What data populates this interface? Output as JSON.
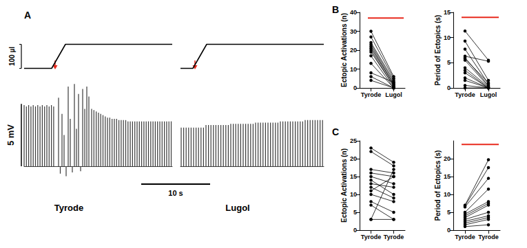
{
  "chart_data": [
    {
      "type": "trace",
      "panel_label": "A",
      "label": "Tyrode",
      "tick_labels": false,
      "grid": false,
      "xlim": [
        0,
        21.5
      ],
      "ylim": [
        -1,
        7
      ],
      "color": "#3a3a3a",
      "volume": {
        "x": [
          0,
          4.0,
          6.0,
          21.5
        ],
        "values": [
          0,
          0,
          100,
          100
        ],
        "ylim": [
          -10,
          110
        ],
        "color": "#000000"
      },
      "injection": {
        "x": 4.5,
        "color": "#e8291c"
      },
      "spikes": {
        "x": [
          0,
          0.33,
          0.66,
          0.99,
          1.32,
          1.65,
          1.98,
          2.31,
          2.64,
          2.97,
          3.3,
          3.63,
          3.96,
          4.29,
          5.0,
          5.25,
          5.5,
          5.8,
          6.1,
          6.4,
          6.7,
          7.0,
          7.3,
          7.6,
          7.9,
          8.2,
          8.5,
          8.8,
          9.1,
          9.4,
          9.8,
          10.13,
          10.46,
          10.79,
          11.12,
          11.45,
          11.78,
          12.11,
          12.44,
          12.77,
          13.1,
          13.43,
          13.76,
          14.09,
          14.42,
          14.75,
          15.08,
          15.41,
          15.74,
          16.07,
          16.4,
          16.73,
          17.06,
          17.39,
          17.72,
          18.05,
          18.38,
          18.71,
          19.04,
          19.37,
          19.7,
          20.03,
          20.36,
          20.69,
          21.02,
          21.35
        ],
        "values": [
          4.9,
          4.8,
          4.9,
          4.8,
          4.9,
          4.8,
          4.9,
          4.8,
          4.9,
          4.8,
          4.9,
          4.8,
          4.9,
          4.8,
          5.5,
          -0.6,
          4.2,
          2.5,
          -0.8,
          6.4,
          3.8,
          -0.5,
          6.6,
          3.0,
          5.8,
          -0.4,
          6.2,
          4.6,
          6.4,
          5.6,
          4.6,
          4.5,
          4.4,
          4.3,
          4.2,
          4.1,
          4.0,
          3.9,
          3.9,
          3.8,
          3.8,
          3.8,
          3.7,
          3.7,
          3.7,
          3.7,
          3.6,
          3.6,
          3.6,
          3.6,
          3.6,
          3.6,
          3.6,
          3.6,
          3.6,
          3.6,
          3.6,
          3.6,
          3.6,
          3.6,
          3.6,
          3.6,
          3.6,
          3.6,
          3.6,
          3.6
        ]
      },
      "scale_bars": [
        {
          "label": "100 µl",
          "value": 100
        },
        {
          "label": "5 mV",
          "value": 5
        },
        {
          "label": "10 s",
          "value": 10
        }
      ]
    },
    {
      "type": "trace",
      "label": "Lugol",
      "tick_labels": false,
      "grid": false,
      "xlim": [
        0,
        20.8
      ],
      "ylim": [
        -1,
        7
      ],
      "color": "#3a3a3a",
      "volume": {
        "x": [
          0,
          1.8,
          3.8,
          20.8
        ],
        "values": [
          0,
          0,
          100,
          100
        ],
        "ylim": [
          -10,
          110
        ],
        "color": "#000000"
      },
      "injection": {
        "x": 2.1,
        "color": "#e8291c"
      },
      "spikes": {
        "x": [
          0.1,
          0.46,
          0.82,
          1.18,
          1.54,
          1.9,
          2.26,
          2.62,
          2.98,
          3.34,
          3.7,
          4.06,
          4.42,
          4.78,
          5.14,
          5.5,
          5.86,
          6.22,
          6.58,
          6.94,
          7.3,
          7.66,
          8.02,
          8.38,
          8.74,
          9.1,
          9.46,
          9.82,
          10.18,
          10.54,
          10.9,
          11.26,
          11.62,
          11.98,
          12.34,
          12.7,
          13.06,
          13.42,
          13.78,
          14.14,
          14.5,
          14.86,
          15.22,
          15.58,
          15.94,
          16.3,
          16.66,
          17.02,
          17.38,
          17.74,
          18.1,
          18.46,
          18.82,
          19.18,
          19.54,
          19.9,
          20.26,
          20.62
        ],
        "values": [
          3.1,
          3.1,
          3.1,
          3.1,
          3.1,
          3.1,
          3.1,
          3.1,
          3.1,
          3.1,
          3.3,
          3.3,
          3.3,
          3.3,
          3.3,
          3.3,
          3.3,
          3.3,
          3.3,
          3.3,
          3.4,
          3.4,
          3.4,
          3.4,
          3.4,
          3.4,
          3.4,
          3.4,
          3.4,
          3.4,
          3.5,
          3.5,
          3.5,
          3.5,
          3.5,
          3.5,
          3.5,
          3.5,
          3.5,
          3.5,
          3.6,
          3.6,
          3.6,
          3.6,
          3.6,
          3.6,
          3.6,
          3.6,
          3.6,
          3.6,
          3.7,
          3.7,
          3.7,
          3.7,
          3.7,
          3.7,
          3.7,
          3.7
        ]
      }
    },
    {
      "type": "paired",
      "panel_label": "B",
      "categories": [
        "Tyrode",
        "Lugol"
      ],
      "y_label": "Ectopic Activations (n)",
      "ylim": [
        0,
        40
      ],
      "yticks": [
        0,
        10,
        20,
        30,
        40
      ],
      "grid": false,
      "color": "#000000",
      "pairs": [
        [
          30,
          6
        ],
        [
          27,
          5
        ],
        [
          24,
          4
        ],
        [
          23,
          3
        ],
        [
          22,
          2
        ],
        [
          21,
          2
        ],
        [
          20,
          1
        ],
        [
          19,
          1
        ],
        [
          17,
          0
        ],
        [
          13,
          0
        ],
        [
          8,
          3
        ],
        [
          6,
          0
        ],
        [
          4,
          0
        ]
      ],
      "significance": {
        "value": 37,
        "color": "#e8291c"
      }
    },
    {
      "type": "paired",
      "categories": [
        "Tyrode",
        "Lugol"
      ],
      "y_label": "Period of Ectopics (s)",
      "ylim": [
        0,
        15
      ],
      "yticks": [
        0,
        5,
        10,
        15
      ],
      "grid": false,
      "color": "#000000",
      "pairs": [
        [
          11.3,
          5.5
        ],
        [
          9.3,
          1.5
        ],
        [
          7.7,
          0.8
        ],
        [
          6.3,
          5.3
        ],
        [
          6.0,
          0.5
        ],
        [
          5.8,
          1.0
        ],
        [
          5.5,
          0.3
        ],
        [
          4.0,
          0.2
        ],
        [
          3.5,
          0
        ],
        [
          3.0,
          0
        ],
        [
          2.0,
          0
        ],
        [
          1.5,
          0
        ],
        [
          0.5,
          0
        ],
        [
          0,
          0
        ]
      ],
      "significance": {
        "value": 14,
        "color": "#e8291c"
      }
    },
    {
      "type": "paired",
      "panel_label": "C",
      "categories": [
        "Tyrode",
        "Tyrode"
      ],
      "y_label": "Ectopic Activations (n)",
      "ylim": [
        0,
        25
      ],
      "yticks": [
        0,
        5,
        10,
        15,
        20,
        25
      ],
      "grid": false,
      "color": "#000000",
      "pairs": [
        [
          23,
          19
        ],
        [
          22,
          18
        ],
        [
          17,
          16
        ],
        [
          16,
          15
        ],
        [
          15,
          13
        ],
        [
          14,
          10
        ],
        [
          13,
          12
        ],
        [
          12,
          9
        ],
        [
          11,
          15
        ],
        [
          10,
          8
        ],
        [
          8,
          5
        ],
        [
          7,
          3
        ],
        [
          3,
          17
        ],
        [
          3,
          3
        ]
      ]
    },
    {
      "type": "paired",
      "categories": [
        "Tyrode",
        "Tyrode"
      ],
      "y_label": "Period of Ectopics (s)",
      "ylim": [
        0,
        25
      ],
      "yticks": [
        0,
        5,
        10,
        15,
        20
      ],
      "grid": false,
      "color": "#000000",
      "pairs": [
        [
          7,
          19.7
        ],
        [
          6.8,
          17.5
        ],
        [
          6.5,
          14.5
        ],
        [
          5,
          11.5
        ],
        [
          4.5,
          8
        ],
        [
          4,
          7.5
        ],
        [
          3.5,
          7
        ],
        [
          3,
          5
        ],
        [
          2.5,
          4
        ],
        [
          2,
          3.5
        ],
        [
          1.5,
          3
        ],
        [
          1,
          1.5
        ]
      ],
      "significance": {
        "value": 24,
        "color": "#e8291c"
      }
    }
  ]
}
